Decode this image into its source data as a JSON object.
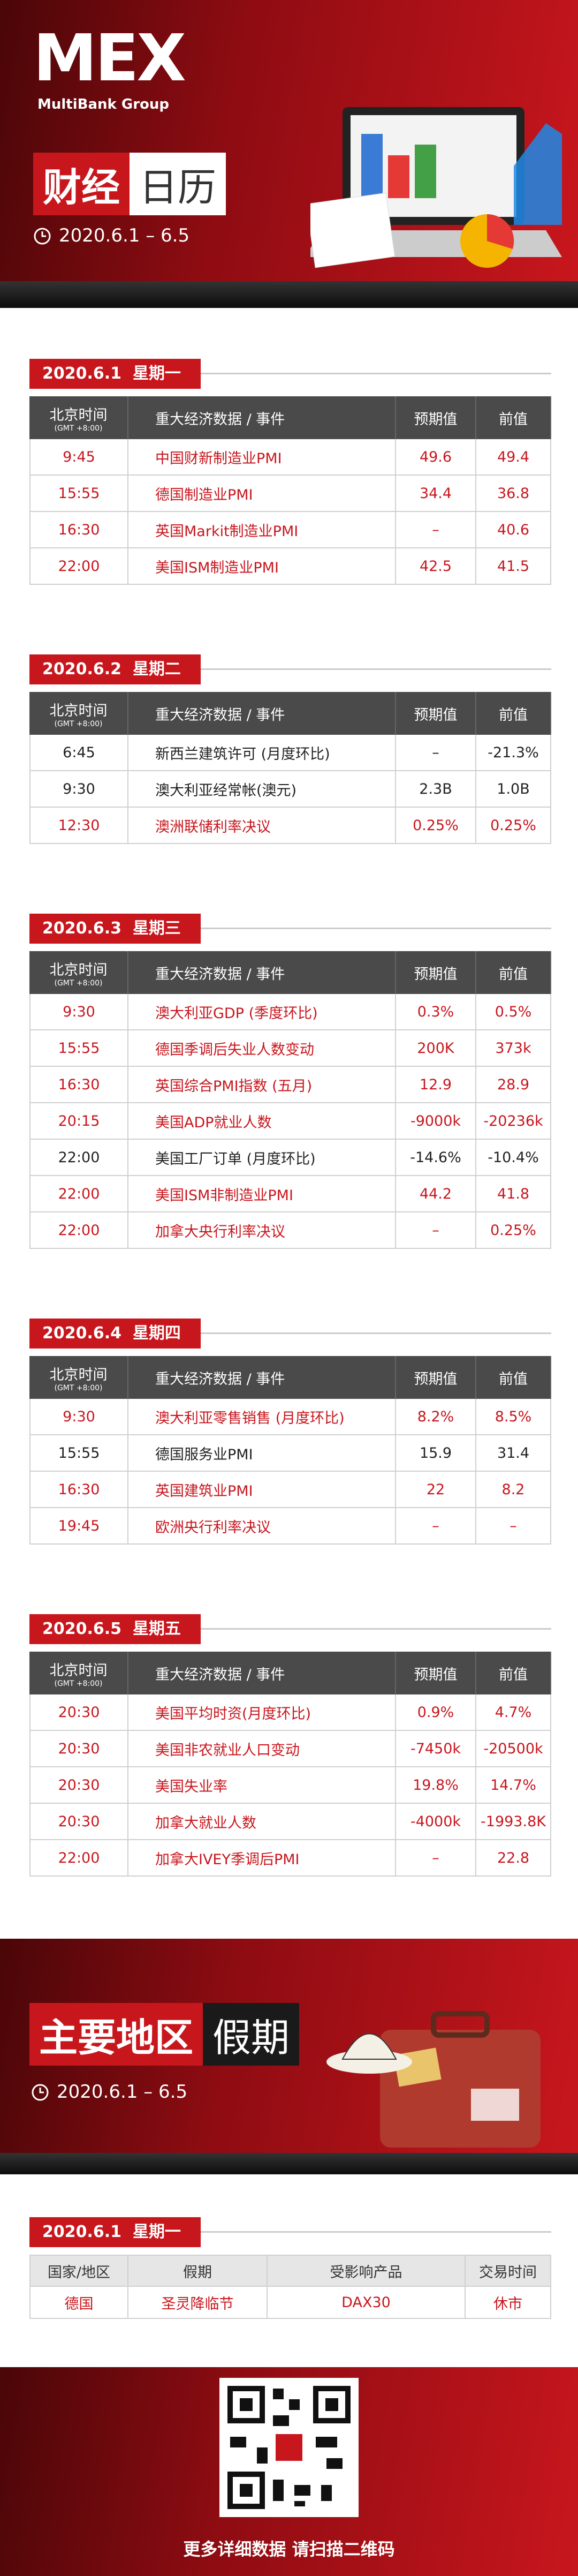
{
  "header": {
    "logo": "MEX",
    "brand": "MultiBank Group",
    "title_a": "财经",
    "title_b": "日历",
    "date_range": "2020.6.1 – 6.5"
  },
  "columns": {
    "time": "北京时间",
    "timezone": "(GMT +8:00)",
    "event": "重大经济数据 / 事件",
    "forecast": "预期值",
    "previous": "前值"
  },
  "days": [
    {
      "date": "2020.6.1",
      "weekday": "星期一",
      "rows": [
        {
          "time": "9:45",
          "event": "中国财新制造业PMI",
          "forecast": "49.6",
          "previous": "49.4",
          "highlight": true
        },
        {
          "time": "15:55",
          "event": "德国制造业PMI",
          "forecast": "34.4",
          "previous": "36.8",
          "highlight": true
        },
        {
          "time": "16:30",
          "event": "英国Markit制造业PMI",
          "forecast": "–",
          "previous": "40.6",
          "highlight": true
        },
        {
          "time": "22:00",
          "event": "美国ISM制造业PMI",
          "forecast": "42.5",
          "previous": "41.5",
          "highlight": true
        }
      ]
    },
    {
      "date": "2020.6.2",
      "weekday": "星期二",
      "rows": [
        {
          "time": "6:45",
          "event": "新西兰建筑许可 (月度环比)",
          "forecast": "–",
          "previous": "-21.3%",
          "highlight": false
        },
        {
          "time": "9:30",
          "event": "澳大利亚经常帐(澳元)",
          "forecast": "2.3B",
          "previous": "1.0B",
          "highlight": false
        },
        {
          "time": "12:30",
          "event": "澳洲联储利率决议",
          "forecast": "0.25%",
          "previous": "0.25%",
          "highlight": true
        }
      ]
    },
    {
      "date": "2020.6.3",
      "weekday": "星期三",
      "rows": [
        {
          "time": "9:30",
          "event": "澳大利亚GDP (季度环比)",
          "forecast": "0.3%",
          "previous": "0.5%",
          "highlight": true
        },
        {
          "time": "15:55",
          "event": "德国季调后失业人数变动",
          "forecast": "200K",
          "previous": "373k",
          "highlight": true
        },
        {
          "time": "16:30",
          "event": "英国综合PMI指数 (五月)",
          "forecast": "12.9",
          "previous": "28.9",
          "highlight": true
        },
        {
          "time": "20:15",
          "event": "美国ADP就业人数",
          "forecast": "-9000k",
          "previous": "-20236k",
          "highlight": true
        },
        {
          "time": "22:00",
          "event": "美国工厂订单 (月度环比)",
          "forecast": "-14.6%",
          "previous": "-10.4%",
          "highlight": false
        },
        {
          "time": "22:00",
          "event": "美国ISM非制造业PMI",
          "forecast": "44.2",
          "previous": "41.8",
          "highlight": true
        },
        {
          "time": "22:00",
          "event": "加拿大央行利率决议",
          "forecast": "–",
          "previous": "0.25%",
          "highlight": true
        }
      ]
    },
    {
      "date": "2020.6.4",
      "weekday": "星期四",
      "rows": [
        {
          "time": "9:30",
          "event": "澳大利亚零售销售 (月度环比)",
          "forecast": "8.2%",
          "previous": "8.5%",
          "highlight": true
        },
        {
          "time": "15:55",
          "event": "德国服务业PMI",
          "forecast": "15.9",
          "previous": "31.4",
          "highlight": false
        },
        {
          "time": "16:30",
          "event": "英国建筑业PMI",
          "forecast": "22",
          "previous": "8.2",
          "highlight": true
        },
        {
          "time": "19:45",
          "event": "欧洲央行利率决议",
          "forecast": "–",
          "previous": "–",
          "highlight": true
        }
      ]
    },
    {
      "date": "2020.6.5",
      "weekday": "星期五",
      "rows": [
        {
          "time": "20:30",
          "event": "美国平均时资(月度环比)",
          "forecast": "0.9%",
          "previous": "4.7%",
          "highlight": true
        },
        {
          "time": "20:30",
          "event": "美国非农就业人口变动",
          "forecast": "-7450k",
          "previous": "-20500k",
          "highlight": true
        },
        {
          "time": "20:30",
          "event": "美国失业率",
          "forecast": "19.8%",
          "previous": "14.7%",
          "highlight": true
        },
        {
          "time": "20:30",
          "event": "加拿大就业人数",
          "forecast": "-4000k",
          "previous": "-1993.8K",
          "highlight": true
        },
        {
          "time": "22:00",
          "event": "加拿大IVEY季调后PMI",
          "forecast": "–",
          "previous": "22.8",
          "highlight": true
        }
      ]
    }
  ],
  "holidays": {
    "title_a": "主要地区",
    "title_b": "假期",
    "date_range": "2020.6.1 – 6.5",
    "date": "2020.6.1",
    "weekday": "星期一",
    "columns": [
      "国家/地区",
      "假期",
      "受影响产品",
      "交易时间"
    ],
    "rows": [
      [
        "德国",
        "圣灵降临节",
        "DAX30",
        "休市"
      ]
    ]
  },
  "footer": "更多详细数据 请扫描二维码"
}
